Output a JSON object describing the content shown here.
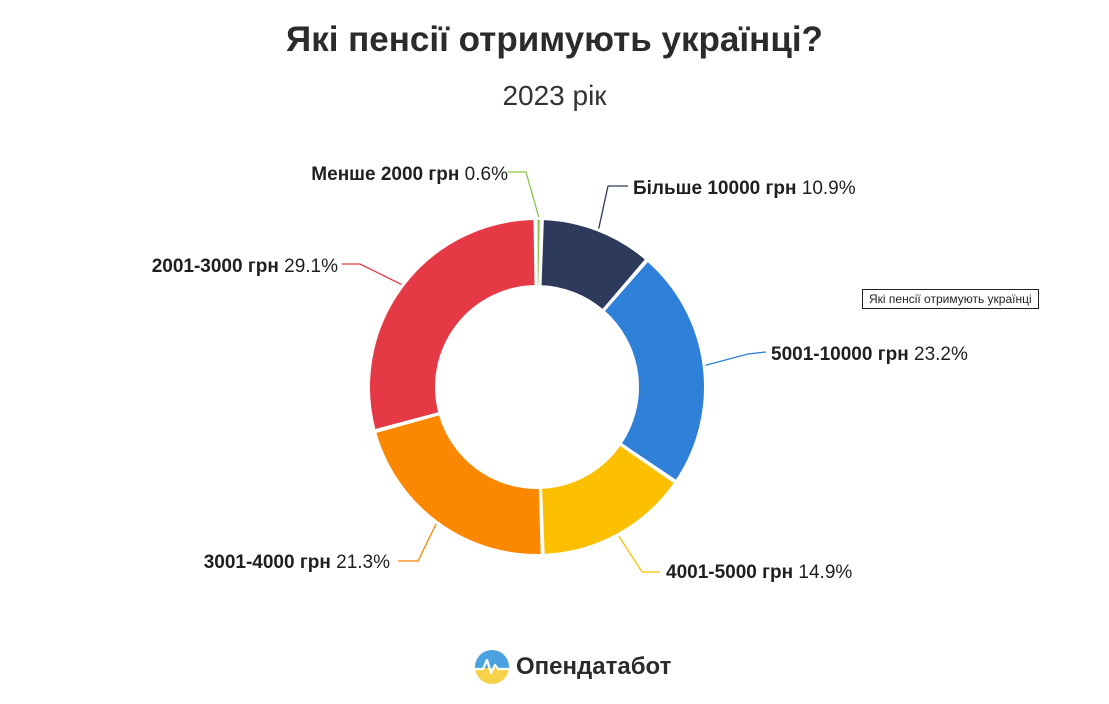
{
  "header": {
    "title": "Які пенсії отримують українці?",
    "subtitle": "2023 рік"
  },
  "tooltip": {
    "text": "Які пенсії отримують українці"
  },
  "brand": {
    "name": "Опендатабот",
    "logo_icon": "opendatabot-logo-icon"
  },
  "chart_data": {
    "type": "pie",
    "donut": true,
    "title": "Які пенсії отримують українці?",
    "subtitle": "2023 рік",
    "slices": [
      {
        "label": "Менше 2000 грн",
        "value": 0.6,
        "value_label": "0.6%",
        "color": "#8bc34a"
      },
      {
        "label": "Більше 10000 грн",
        "value": 10.9,
        "value_label": "10.9%",
        "color": "#2e3a5c"
      },
      {
        "label": "5001-10000 грн",
        "value": 23.2,
        "value_label": "23.2%",
        "color": "#2f80d9"
      },
      {
        "label": "4001-5000 грн",
        "value": 14.9,
        "value_label": "14.9%",
        "color": "#fcc000"
      },
      {
        "label": "3001-4000 грн",
        "value": 21.3,
        "value_label": "21.3%",
        "color": "#fb8800"
      },
      {
        "label": "2001-3000 грн",
        "value": 29.1,
        "value_label": "29.1%",
        "color": "#e63946"
      }
    ]
  }
}
